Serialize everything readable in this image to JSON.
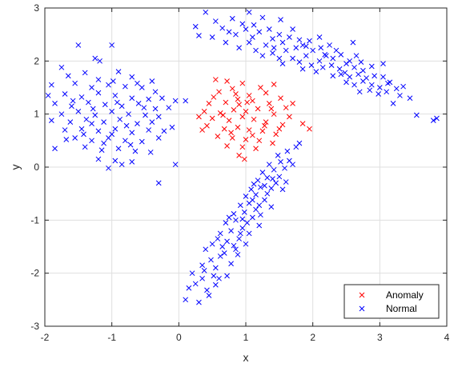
{
  "chart_data": {
    "type": "scatter",
    "title": "",
    "xlabel": "x",
    "ylabel": "y",
    "xlim": [
      -2,
      4
    ],
    "ylim": [
      -3,
      3
    ],
    "xticks": [
      -2,
      -1,
      0,
      1,
      2,
      3,
      4
    ],
    "yticks": [
      -3,
      -2,
      -1,
      0,
      1,
      2,
      3
    ],
    "grid": true,
    "legend_position": "bottom-right",
    "marker": "x",
    "series": [
      {
        "name": "Anomaly",
        "color": "#ff0000",
        "points": [
          [
            0.55,
            1.65
          ],
          [
            0.72,
            1.62
          ],
          [
            0.95,
            1.58
          ],
          [
            1.22,
            1.5
          ],
          [
            1.42,
            1.56
          ],
          [
            0.6,
            1.42
          ],
          [
            0.85,
            1.38
          ],
          [
            1.05,
            1.35
          ],
          [
            1.3,
            1.4
          ],
          [
            1.52,
            1.3
          ],
          [
            0.45,
            1.2
          ],
          [
            0.7,
            1.22
          ],
          [
            0.9,
            1.18
          ],
          [
            1.1,
            1.25
          ],
          [
            1.35,
            1.2
          ],
          [
            1.6,
            1.12
          ],
          [
            0.38,
            1.05
          ],
          [
            0.62,
            1.02
          ],
          [
            0.82,
            1.08
          ],
          [
            1.0,
            1.05
          ],
          [
            1.18,
            1.1
          ],
          [
            1.42,
            1.0
          ],
          [
            1.65,
            0.95
          ],
          [
            0.5,
            0.92
          ],
          [
            0.75,
            0.88
          ],
          [
            0.95,
            0.95
          ],
          [
            1.12,
            0.9
          ],
          [
            1.3,
            0.85
          ],
          [
            1.55,
            0.8
          ],
          [
            0.42,
            0.78
          ],
          [
            0.68,
            0.72
          ],
          [
            0.88,
            0.75
          ],
          [
            1.05,
            0.7
          ],
          [
            1.25,
            0.68
          ],
          [
            1.45,
            0.62
          ],
          [
            0.58,
            0.58
          ],
          [
            0.8,
            0.55
          ],
          [
            1.0,
            0.52
          ],
          [
            1.2,
            0.5
          ],
          [
            1.4,
            0.45
          ],
          [
            0.72,
            0.4
          ],
          [
            0.95,
            0.38
          ],
          [
            1.15,
            0.35
          ],
          [
            0.9,
            0.22
          ],
          [
            0.98,
            0.15
          ],
          [
            1.85,
            0.82
          ],
          [
            1.95,
            0.72
          ],
          [
            1.7,
            1.2
          ],
          [
            0.3,
            0.95
          ],
          [
            0.52,
            1.32
          ],
          [
            0.8,
            1.48
          ],
          [
            1.38,
            1.1
          ],
          [
            1.02,
            1.22
          ],
          [
            0.66,
            0.98
          ],
          [
            1.28,
            0.78
          ],
          [
            0.88,
            1.28
          ],
          [
            1.5,
            0.72
          ],
          [
            0.35,
            0.7
          ],
          [
            1.1,
            0.6
          ],
          [
            0.78,
            0.65
          ]
        ]
      },
      {
        "name": "Normal",
        "color": "#0000ff",
        "points": [
          [
            -1.5,
            2.3
          ],
          [
            -1.0,
            2.3
          ],
          [
            -1.25,
            2.05
          ],
          [
            -1.18,
            2.0
          ],
          [
            -1.75,
            1.88
          ],
          [
            -0.9,
            1.8
          ],
          [
            -0.7,
            1.7
          ],
          [
            -0.4,
            1.62
          ],
          [
            -1.9,
            1.55
          ],
          [
            -1.55,
            1.58
          ],
          [
            -1.3,
            1.5
          ],
          [
            -1.05,
            1.55
          ],
          [
            -0.8,
            1.52
          ],
          [
            -0.55,
            1.5
          ],
          [
            -0.35,
            1.42
          ],
          [
            -1.95,
            1.35
          ],
          [
            -1.7,
            1.38
          ],
          [
            -1.45,
            1.32
          ],
          [
            -1.2,
            1.4
          ],
          [
            -0.95,
            1.35
          ],
          [
            -0.7,
            1.3
          ],
          [
            -0.45,
            1.28
          ],
          [
            -0.25,
            1.3
          ],
          [
            -1.85,
            1.2
          ],
          [
            -1.6,
            1.15
          ],
          [
            -1.35,
            1.22
          ],
          [
            -1.1,
            1.18
          ],
          [
            -0.85,
            1.15
          ],
          [
            -0.6,
            1.2
          ],
          [
            -0.35,
            1.1
          ],
          [
            -0.15,
            1.12
          ],
          [
            -1.75,
            1.0
          ],
          [
            -1.5,
            1.05
          ],
          [
            -1.25,
            0.98
          ],
          [
            -1.0,
            1.05
          ],
          [
            -0.75,
            1.0
          ],
          [
            -0.5,
            0.98
          ],
          [
            -0.3,
            0.95
          ],
          [
            -1.9,
            0.88
          ],
          [
            -1.62,
            0.85
          ],
          [
            -1.38,
            0.9
          ],
          [
            -1.12,
            0.85
          ],
          [
            -0.88,
            0.9
          ],
          [
            -0.62,
            0.82
          ],
          [
            -0.4,
            0.85
          ],
          [
            -1.7,
            0.7
          ],
          [
            -1.45,
            0.72
          ],
          [
            -1.2,
            0.68
          ],
          [
            -0.95,
            0.72
          ],
          [
            -0.7,
            0.65
          ],
          [
            -0.45,
            0.7
          ],
          [
            -1.55,
            0.55
          ],
          [
            -1.3,
            0.5
          ],
          [
            -1.05,
            0.55
          ],
          [
            -0.8,
            0.5
          ],
          [
            -0.55,
            0.48
          ],
          [
            -0.3,
            0.55
          ],
          [
            -1.85,
            0.35
          ],
          [
            -1.4,
            0.38
          ],
          [
            -1.15,
            0.32
          ],
          [
            -0.9,
            0.35
          ],
          [
            -0.65,
            0.3
          ],
          [
            -0.42,
            0.28
          ],
          [
            -1.2,
            0.15
          ],
          [
            -0.95,
            0.12
          ],
          [
            -0.7,
            0.1
          ],
          [
            -1.05,
            -0.02
          ],
          [
            -0.85,
            0.05
          ],
          [
            -0.3,
            -0.3
          ],
          [
            -0.05,
            0.05
          ],
          [
            -0.1,
            0.75
          ],
          [
            -0.05,
            1.25
          ],
          [
            0.1,
            1.25
          ],
          [
            -1.65,
            1.72
          ],
          [
            -1.4,
            1.78
          ],
          [
            -1.2,
            1.65
          ],
          [
            -0.98,
            1.62
          ],
          [
            -0.62,
            1.58
          ],
          [
            -1.0,
            0.62
          ],
          [
            -1.3,
            0.82
          ],
          [
            -0.78,
            0.78
          ],
          [
            -1.58,
            1.25
          ],
          [
            -1.28,
            1.1
          ],
          [
            -0.92,
            1.22
          ],
          [
            -0.52,
            1.12
          ],
          [
            -1.42,
            0.62
          ],
          [
            -0.72,
            0.42
          ],
          [
            -0.22,
            0.68
          ],
          [
            -1.12,
            0.45
          ],
          [
            -1.68,
            0.52
          ],
          [
            0.4,
            2.92
          ],
          [
            0.55,
            2.75
          ],
          [
            0.8,
            2.8
          ],
          [
            0.75,
            2.55
          ],
          [
            0.95,
            2.7
          ],
          [
            1.05,
            2.92
          ],
          [
            1.25,
            2.82
          ],
          [
            1.52,
            2.78
          ],
          [
            0.5,
            2.45
          ],
          [
            0.7,
            2.35
          ],
          [
            0.85,
            2.5
          ],
          [
            1.0,
            2.6
          ],
          [
            1.1,
            2.45
          ],
          [
            1.2,
            2.55
          ],
          [
            1.35,
            2.6
          ],
          [
            1.5,
            2.5
          ],
          [
            0.9,
            2.25
          ],
          [
            1.05,
            2.35
          ],
          [
            1.15,
            2.2
          ],
          [
            1.3,
            2.3
          ],
          [
            1.4,
            2.42
          ],
          [
            1.55,
            2.35
          ],
          [
            1.65,
            2.45
          ],
          [
            1.8,
            2.4
          ],
          [
            1.25,
            2.1
          ],
          [
            1.4,
            2.15
          ],
          [
            1.5,
            2.05
          ],
          [
            1.6,
            2.2
          ],
          [
            1.75,
            2.25
          ],
          [
            1.85,
            2.3
          ],
          [
            1.95,
            2.38
          ],
          [
            2.1,
            2.45
          ],
          [
            1.55,
            1.95
          ],
          [
            1.7,
            2.05
          ],
          [
            1.8,
            1.98
          ],
          [
            1.9,
            2.1
          ],
          [
            2.0,
            2.2
          ],
          [
            2.12,
            2.25
          ],
          [
            2.25,
            2.3
          ],
          [
            2.35,
            2.2
          ],
          [
            1.85,
            1.85
          ],
          [
            1.98,
            1.92
          ],
          [
            2.1,
            2.0
          ],
          [
            2.2,
            2.1
          ],
          [
            2.3,
            2.05
          ],
          [
            2.42,
            2.12
          ],
          [
            2.55,
            2.0
          ],
          [
            2.65,
            2.1
          ],
          [
            2.05,
            1.8
          ],
          [
            2.15,
            1.88
          ],
          [
            2.28,
            1.92
          ],
          [
            2.4,
            1.85
          ],
          [
            2.5,
            1.95
          ],
          [
            2.62,
            1.88
          ],
          [
            2.75,
            1.82
          ],
          [
            2.88,
            1.9
          ],
          [
            2.3,
            1.72
          ],
          [
            2.42,
            1.75
          ],
          [
            2.55,
            1.7
          ],
          [
            2.68,
            1.75
          ],
          [
            2.8,
            1.68
          ],
          [
            2.92,
            1.72
          ],
          [
            3.05,
            1.7
          ],
          [
            3.15,
            1.6
          ],
          [
            2.5,
            1.6
          ],
          [
            2.62,
            1.55
          ],
          [
            2.75,
            1.62
          ],
          [
            2.88,
            1.55
          ],
          [
            3.0,
            1.5
          ],
          [
            3.12,
            1.58
          ],
          [
            3.25,
            1.48
          ],
          [
            3.35,
            1.52
          ],
          [
            2.7,
            1.42
          ],
          [
            2.85,
            1.45
          ],
          [
            2.98,
            1.38
          ],
          [
            3.1,
            1.42
          ],
          [
            3.3,
            1.35
          ],
          [
            3.45,
            1.3
          ],
          [
            3.05,
            1.95
          ],
          [
            2.6,
            2.35
          ],
          [
            3.2,
            1.2
          ],
          [
            3.55,
            0.98
          ],
          [
            3.8,
            0.88
          ],
          [
            3.85,
            0.92
          ],
          [
            0.25,
            2.65
          ],
          [
            0.3,
            2.48
          ],
          [
            0.65,
            2.62
          ],
          [
            1.7,
            2.6
          ],
          [
            1.12,
            2.68
          ],
          [
            1.42,
            2.25
          ],
          [
            1.9,
            2.28
          ],
          [
            2.18,
            2.12
          ],
          [
            2.48,
            1.78
          ],
          [
            2.72,
            1.98
          ],
          [
            0.42,
            -2.32
          ],
          [
            0.55,
            -2.22
          ],
          [
            0.72,
            -2.05
          ],
          [
            0.3,
            -2.55
          ],
          [
            0.25,
            -2.2
          ],
          [
            0.2,
            -2.0
          ],
          [
            0.45,
            -2.42
          ],
          [
            0.35,
            -1.85
          ],
          [
            0.48,
            -1.75
          ],
          [
            0.62,
            -1.68
          ],
          [
            0.55,
            -1.9
          ],
          [
            0.78,
            -1.82
          ],
          [
            0.4,
            -1.55
          ],
          [
            0.65,
            -1.5
          ],
          [
            0.5,
            -1.45
          ],
          [
            0.72,
            -1.4
          ],
          [
            0.85,
            -1.55
          ],
          [
            0.9,
            -1.35
          ],
          [
            0.62,
            -1.25
          ],
          [
            0.78,
            -1.2
          ],
          [
            0.95,
            -1.15
          ],
          [
            0.7,
            -1.05
          ],
          [
            0.85,
            -1.0
          ],
          [
            1.02,
            -1.05
          ],
          [
            1.1,
            -0.95
          ],
          [
            0.82,
            -0.88
          ],
          [
            0.98,
            -0.85
          ],
          [
            1.15,
            -0.8
          ],
          [
            0.92,
            -0.72
          ],
          [
            1.05,
            -0.68
          ],
          [
            1.2,
            -0.72
          ],
          [
            1.28,
            -0.62
          ],
          [
            1.0,
            -0.55
          ],
          [
            1.15,
            -0.52
          ],
          [
            1.32,
            -0.5
          ],
          [
            1.08,
            -0.42
          ],
          [
            1.22,
            -0.38
          ],
          [
            1.38,
            -0.4
          ],
          [
            1.45,
            -0.3
          ],
          [
            1.18,
            -0.25
          ],
          [
            1.32,
            -0.2
          ],
          [
            1.5,
            -0.18
          ],
          [
            1.25,
            -0.1
          ],
          [
            1.42,
            -0.05
          ],
          [
            1.58,
            -0.02
          ],
          [
            1.35,
            0.05
          ],
          [
            1.52,
            0.1
          ],
          [
            1.65,
            0.12
          ],
          [
            1.48,
            0.22
          ],
          [
            1.62,
            0.3
          ],
          [
            1.75,
            0.38
          ],
          [
            1.7,
            0.05
          ],
          [
            1.8,
            0.45
          ],
          [
            1.6,
            -0.28
          ],
          [
            1.05,
            -1.25
          ],
          [
            1.2,
            -1.1
          ],
          [
            0.88,
            -1.65
          ],
          [
            1.0,
            -1.45
          ],
          [
            0.6,
            -2.1
          ],
          [
            0.15,
            -2.28
          ],
          [
            0.1,
            -2.5
          ],
          [
            0.35,
            -2.1
          ],
          [
            1.22,
            -0.9
          ],
          [
            0.75,
            -0.95
          ],
          [
            1.38,
            -0.75
          ],
          [
            0.68,
            -1.62
          ],
          [
            0.92,
            -1.25
          ],
          [
            1.1,
            -0.62
          ],
          [
            1.28,
            -0.35
          ],
          [
            0.58,
            -1.35
          ],
          [
            0.82,
            -1.48
          ],
          [
            1.4,
            -0.22
          ],
          [
            1.55,
            -0.42
          ],
          [
            0.38,
            -1.95
          ],
          [
            0.52,
            -2.05
          ],
          [
            0.95,
            -0.98
          ],
          [
            1.12,
            -0.32
          ]
        ]
      }
    ]
  }
}
